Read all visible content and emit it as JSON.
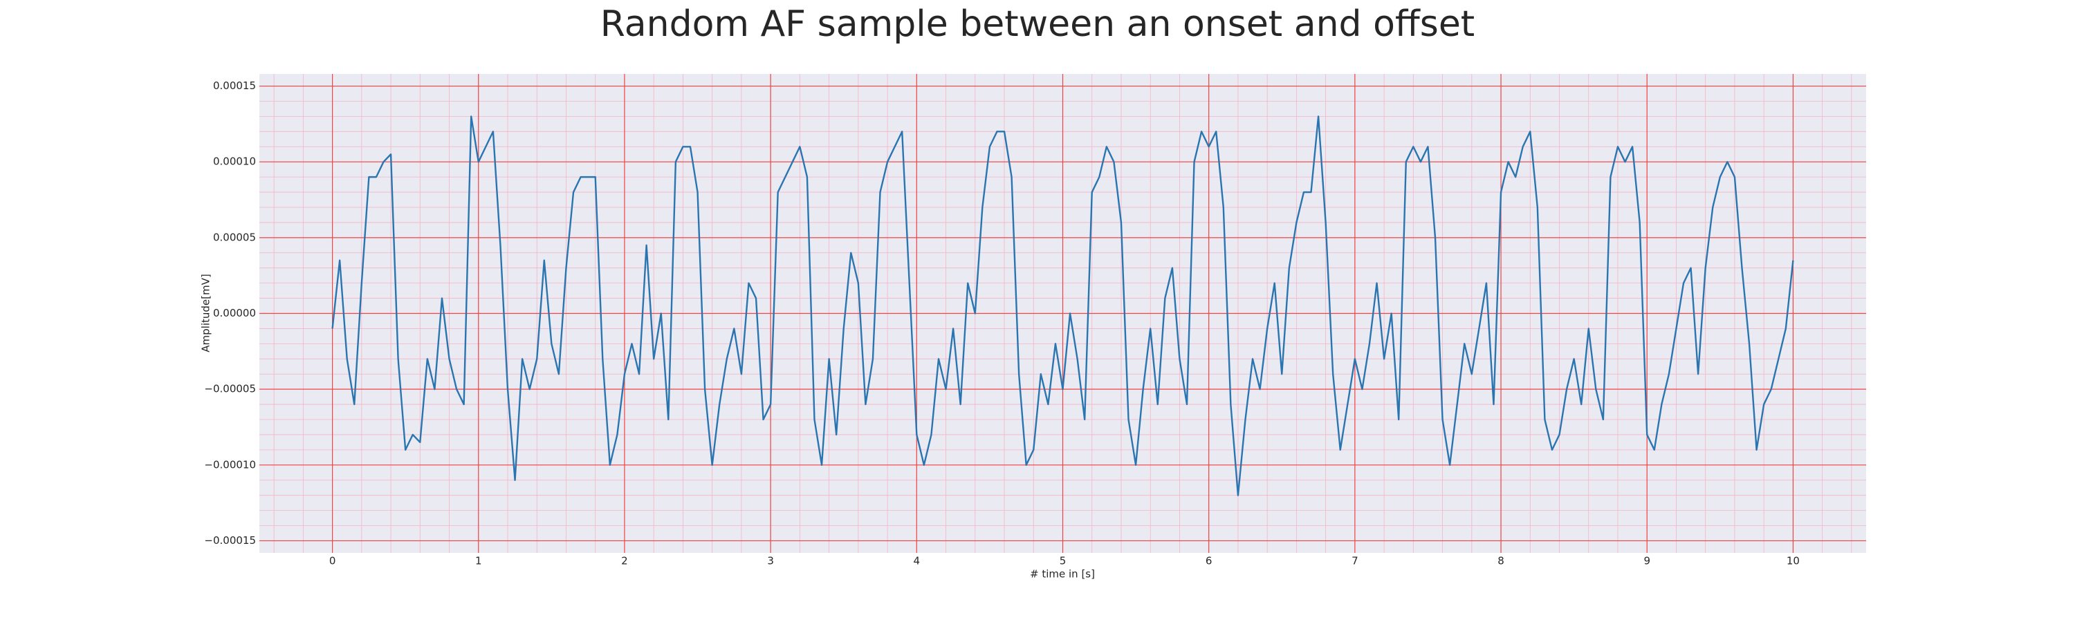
{
  "chart_data": {
    "type": "line",
    "title": "Random AF sample between an onset and offset",
    "xlabel": "# time in [s]",
    "ylabel": "Amplitude[mV]",
    "color": "#2a75b0",
    "grid": true,
    "xlim": [
      -0.5,
      10.5
    ],
    "ylim": [
      -0.000158,
      0.000158
    ],
    "xticks": [
      0,
      1,
      2,
      3,
      4,
      5,
      6,
      7,
      8,
      9,
      10
    ],
    "yticks": [
      {
        "value": -0.00015,
        "label": "−0.00015"
      },
      {
        "value": -0.0001,
        "label": "−0.00010"
      },
      {
        "value": -5e-05,
        "label": "−0.00005"
      },
      {
        "value": 0,
        "label": "0.00000"
      },
      {
        "value": 5e-05,
        "label": "0.00005"
      },
      {
        "value": 0.0001,
        "label": "0.00010"
      },
      {
        "value": 0.00015,
        "label": "0.00015"
      }
    ],
    "x": [
      0,
      0.05,
      0.1,
      0.15,
      0.2,
      0.25,
      0.3,
      0.35,
      0.4,
      0.45,
      0.5,
      0.55,
      0.6,
      0.65,
      0.7,
      0.75,
      0.8,
      0.85,
      0.9,
      0.95,
      1,
      1.05,
      1.1,
      1.15,
      1.2,
      1.25,
      1.3,
      1.35,
      1.4,
      1.45,
      1.5,
      1.55,
      1.6,
      1.65,
      1.7,
      1.75,
      1.8,
      1.85,
      1.9,
      1.95,
      2,
      2.05,
      2.1,
      2.15,
      2.2,
      2.25,
      2.3,
      2.35,
      2.4,
      2.45,
      2.5,
      2.55,
      2.6,
      2.65,
      2.7,
      2.75,
      2.8,
      2.85,
      2.9,
      2.95,
      3,
      3.05,
      3.1,
      3.15,
      3.2,
      3.25,
      3.3,
      3.35,
      3.4,
      3.45,
      3.5,
      3.55,
      3.6,
      3.65,
      3.7,
      3.75,
      3.8,
      3.85,
      3.9,
      3.95,
      4,
      4.05,
      4.1,
      4.15,
      4.2,
      4.25,
      4.3,
      4.35,
      4.4,
      4.45,
      4.5,
      4.55,
      4.6,
      4.65,
      4.7,
      4.75,
      4.8,
      4.85,
      4.9,
      4.95,
      5,
      5.05,
      5.1,
      5.15,
      5.2,
      5.25,
      5.3,
      5.35,
      5.4,
      5.45,
      5.5,
      5.55,
      5.6,
      5.65,
      5.7,
      5.75,
      5.8,
      5.85,
      5.9,
      5.95,
      6,
      6.05,
      6.1,
      6.15,
      6.2,
      6.25,
      6.3,
      6.35,
      6.4,
      6.45,
      6.5,
      6.55,
      6.6,
      6.65,
      6.7,
      6.75,
      6.8,
      6.85,
      6.9,
      6.95,
      7,
      7.05,
      7.1,
      7.15,
      7.2,
      7.25,
      7.3,
      7.35,
      7.4,
      7.45,
      7.5,
      7.55,
      7.6,
      7.65,
      7.7,
      7.75,
      7.8,
      7.85,
      7.9,
      7.95,
      8,
      8.05,
      8.1,
      8.15,
      8.2,
      8.25,
      8.3,
      8.35,
      8.4,
      8.45,
      8.5,
      8.55,
      8.6,
      8.65,
      8.7,
      8.75,
      8.8,
      8.85,
      8.9,
      8.95,
      9,
      9.05,
      9.1,
      9.15,
      9.2,
      9.25,
      9.3,
      9.35,
      9.4,
      9.45,
      9.5,
      9.55,
      9.6,
      9.65,
      9.7,
      9.75,
      9.8,
      9.85,
      9.9,
      9.95,
      10
    ],
    "values": [
      -1e-05,
      3.5e-05,
      -3e-05,
      -6e-05,
      2e-05,
      9e-05,
      9e-05,
      0.0001,
      0.000105,
      -3e-05,
      -9e-05,
      -8e-05,
      -8.5e-05,
      -3e-05,
      -5e-05,
      1e-05,
      -3e-05,
      -5e-05,
      -6e-05,
      0.00013,
      0.0001,
      0.00011,
      0.00012,
      4.5e-05,
      -5e-05,
      -0.00011,
      -3e-05,
      -5e-05,
      -3e-05,
      3.5e-05,
      -2e-05,
      -4e-05,
      3e-05,
      8e-05,
      9e-05,
      9e-05,
      9e-05,
      -3e-05,
      -0.0001,
      -8e-05,
      -4e-05,
      -2e-05,
      -4e-05,
      4.5e-05,
      -3e-05,
      0,
      -7e-05,
      0.0001,
      0.00011,
      0.00011,
      8e-05,
      -5e-05,
      -0.0001,
      -6e-05,
      -3e-05,
      -1e-05,
      -4e-05,
      2e-05,
      1e-05,
      -7e-05,
      -6e-05,
      8e-05,
      9e-05,
      0.0001,
      0.00011,
      9e-05,
      -7e-05,
      -0.0001,
      -3e-05,
      -8e-05,
      -1e-05,
      4e-05,
      2e-05,
      -6e-05,
      -3e-05,
      8e-05,
      0.0001,
      0.00011,
      0.00012,
      2e-05,
      -8e-05,
      -0.0001,
      -8e-05,
      -3e-05,
      -5e-05,
      -1e-05,
      -6e-05,
      2e-05,
      0,
      7e-05,
      0.00011,
      0.00012,
      0.00012,
      9e-05,
      -4e-05,
      -0.0001,
      -9e-05,
      -4e-05,
      -6e-05,
      -2e-05,
      -5e-05,
      0,
      -3e-05,
      -7e-05,
      8e-05,
      9e-05,
      0.00011,
      0.0001,
      6e-05,
      -7e-05,
      -0.0001,
      -5e-05,
      -1e-05,
      -6e-05,
      1e-05,
      3e-05,
      -3e-05,
      -6e-05,
      0.0001,
      0.00012,
      0.00011,
      0.00012,
      7e-05,
      -6e-05,
      -0.00012,
      -7e-05,
      -3e-05,
      -5e-05,
      -1e-05,
      2e-05,
      -4e-05,
      3e-05,
      6e-05,
      8e-05,
      8e-05,
      0.00013,
      6e-05,
      -4e-05,
      -9e-05,
      -6e-05,
      -3e-05,
      -5e-05,
      -2e-05,
      2e-05,
      -3e-05,
      0,
      -7e-05,
      0.0001,
      0.00011,
      0.0001,
      0.00011,
      5e-05,
      -7e-05,
      -0.0001,
      -6e-05,
      -2e-05,
      -4e-05,
      -1e-05,
      2e-05,
      -6e-05,
      8e-05,
      0.0001,
      9e-05,
      0.00011,
      0.00012,
      7e-05,
      -7e-05,
      -9e-05,
      -8e-05,
      -5e-05,
      -3e-05,
      -6e-05,
      -1e-05,
      -5e-05,
      -7e-05,
      9e-05,
      0.00011,
      0.0001,
      0.00011,
      6e-05,
      -8e-05,
      -9e-05,
      -6e-05,
      -4e-05,
      -1e-05,
      2e-05,
      3e-05,
      -4e-05,
      3e-05,
      7e-05,
      9e-05,
      0.0001,
      9e-05,
      3e-05,
      -2e-05,
      -9e-05,
      -6e-05,
      -5e-05,
      -3e-05,
      -1e-05,
      3.5e-05
    ]
  }
}
